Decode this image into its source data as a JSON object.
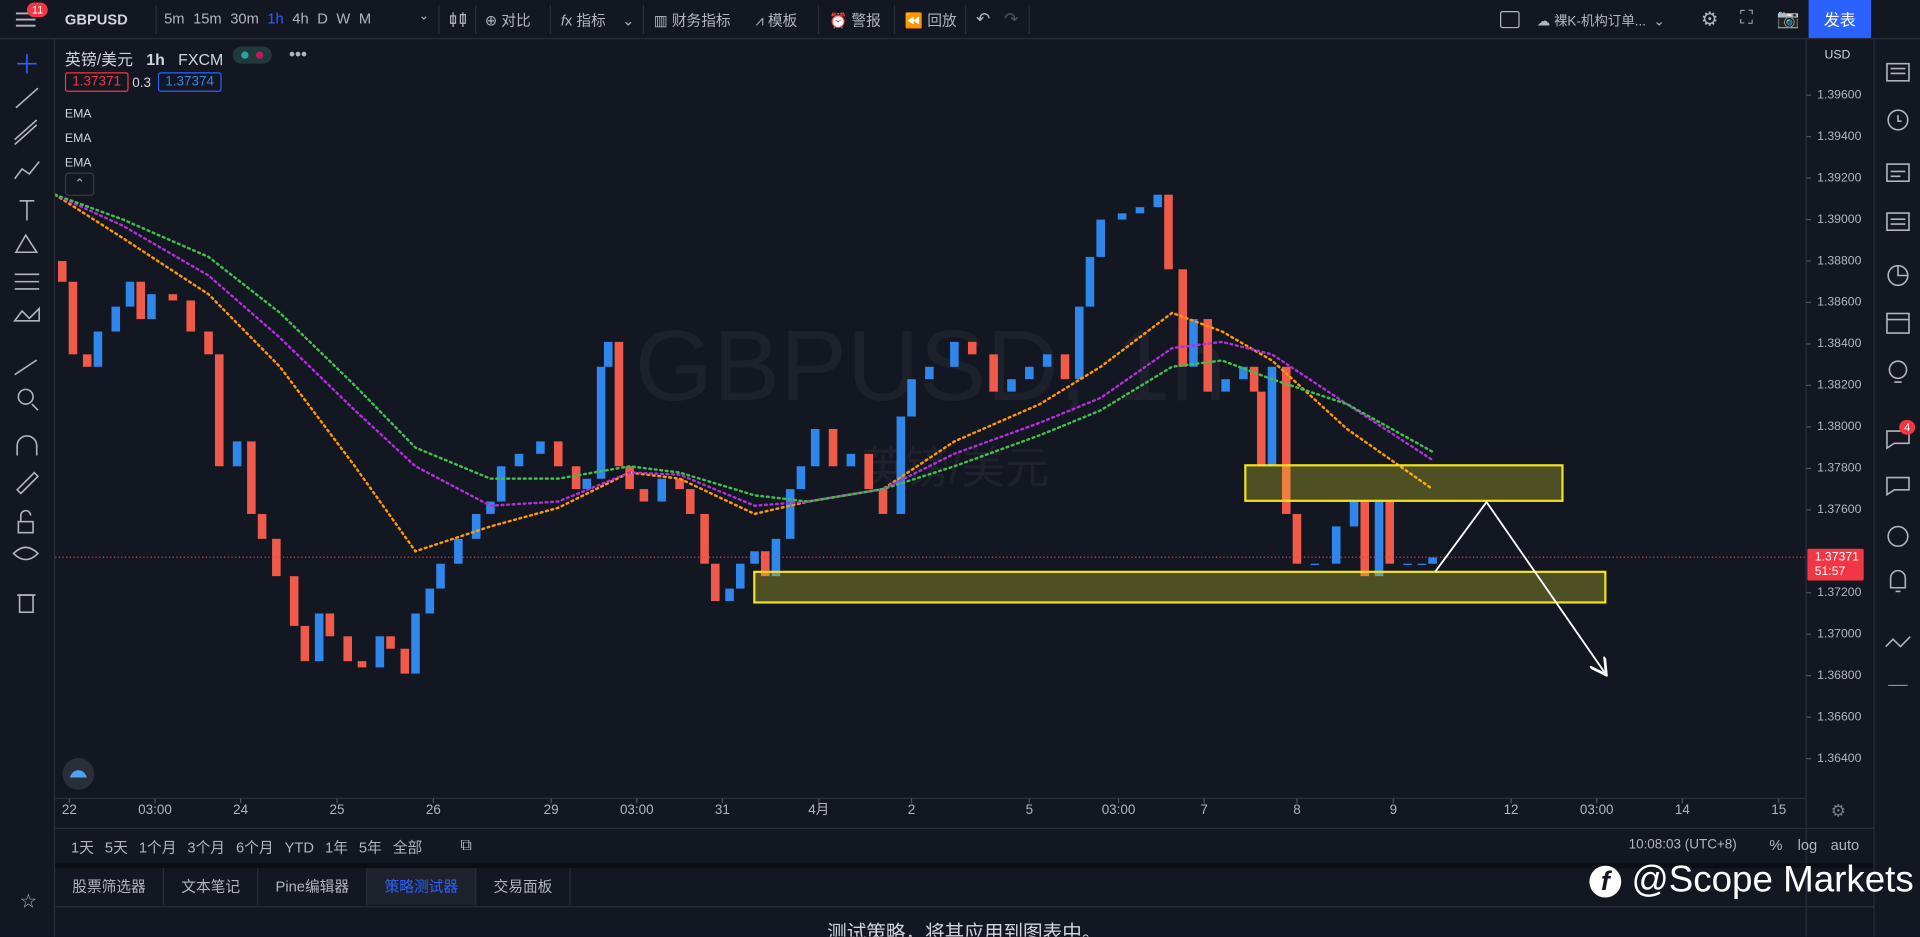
{
  "toolbar": {
    "badge": "11",
    "symbol": "GBPUSD",
    "timeframes": [
      "5m",
      "15m",
      "30m",
      "1h",
      "4h",
      "D",
      "W",
      "M"
    ],
    "compare": "对比",
    "indicators": "指标",
    "financials": "财务指标",
    "templates": "模板",
    "alert": "警报",
    "replay": "回放",
    "layout_name": "裸K-机构订单...",
    "publish": "发表"
  },
  "legend": {
    "name": "英镑/美元",
    "interval": "1h",
    "exchange": "FXCM",
    "bid": "1.37371",
    "spread": "0.3",
    "ask": "1.37374"
  },
  "watermark": {
    "symbol": "GBPUSD, 1h",
    "name": "英镑/美元"
  },
  "chart_data": {
    "type": "candlestick",
    "currency": "USD",
    "up_color": "#2f86eb",
    "down_color": "#ef5a4a",
    "grid": false,
    "xlim": [
      0,
      490
    ],
    "ylim": [
      1.3622,
      1.3987
    ],
    "xticks": [
      {
        "value": 4,
        "label": "22"
      },
      {
        "value": 28,
        "label": "03:00"
      },
      {
        "value": 52,
        "label": "24"
      },
      {
        "value": 79,
        "label": "25"
      },
      {
        "value": 106,
        "label": "26"
      },
      {
        "value": 139,
        "label": "29"
      },
      {
        "value": 163,
        "label": "03:00"
      },
      {
        "value": 187,
        "label": "31"
      },
      {
        "value": 214,
        "label": "4月"
      },
      {
        "value": 240,
        "label": "2"
      },
      {
        "value": 273,
        "label": "5"
      },
      {
        "value": 298,
        "label": "03:00"
      },
      {
        "value": 322,
        "label": "7"
      },
      {
        "value": 348,
        "label": "8"
      },
      {
        "value": 375,
        "label": "9"
      },
      {
        "value": 408,
        "label": "12"
      },
      {
        "value": 432,
        "label": "03:00"
      },
      {
        "value": 456,
        "label": "14"
      },
      {
        "value": 483,
        "label": "15"
      }
    ],
    "yticks": [
      {
        "value": 1.364,
        "label": "1.36400"
      },
      {
        "value": 1.366,
        "label": "1.36600"
      },
      {
        "value": 1.368,
        "label": "1.36800"
      },
      {
        "value": 1.37,
        "label": "1.37000"
      },
      {
        "value": 1.372,
        "label": "1.37200"
      },
      {
        "value": 1.376,
        "label": "1.37600"
      },
      {
        "value": 1.378,
        "label": "1.37800"
      },
      {
        "value": 1.38,
        "label": "1.38000"
      },
      {
        "value": 1.382,
        "label": "1.38200"
      },
      {
        "value": 1.384,
        "label": "1.38400"
      },
      {
        "value": 1.386,
        "label": "1.38600"
      },
      {
        "value": 1.388,
        "label": "1.38800"
      },
      {
        "value": 1.39,
        "label": "1.39000"
      },
      {
        "value": 1.392,
        "label": "1.39200"
      },
      {
        "value": 1.394,
        "label": "1.39400"
      },
      {
        "value": 1.396,
        "label": "1.39600"
      }
    ],
    "x": [
      2,
      5,
      9,
      12,
      17,
      21,
      24,
      27,
      33,
      38,
      43,
      46,
      51,
      55,
      58,
      62,
      67,
      70,
      74,
      77,
      82,
      86,
      91,
      94,
      98,
      101,
      105,
      108,
      113,
      118,
      122,
      125,
      130,
      136,
      141,
      146,
      149,
      153,
      155,
      158,
      161,
      165,
      170,
      175,
      178,
      182,
      185,
      189,
      192,
      196,
      199,
      202,
      206,
      209,
      213,
      218,
      223,
      228,
      232,
      237,
      240,
      245,
      252,
      257,
      263,
      268,
      273,
      278,
      283,
      287,
      290,
      293,
      299,
      304,
      309,
      312,
      316,
      319,
      323,
      328,
      333,
      336,
      338,
      341,
      345,
      348,
      353,
      359,
      364,
      367,
      371,
      374,
      379,
      383,
      386
    ],
    "open": [
      1.388,
      1.387,
      1.3835,
      1.3829,
      1.3846,
      1.3858,
      1.387,
      1.3852,
      1.3864,
      1.3861,
      1.3846,
      1.3835,
      1.3781,
      1.3793,
      1.3758,
      1.3746,
      1.3728,
      1.3704,
      1.3687,
      1.371,
      1.3699,
      1.3687,
      1.3684,
      1.3699,
      1.3693,
      1.3681,
      1.371,
      1.3722,
      1.3734,
      1.3746,
      1.3758,
      1.3764,
      1.3781,
      1.3787,
      1.3793,
      1.3781,
      1.377,
      1.3775,
      1.3829,
      1.3841,
      1.3781,
      1.377,
      1.3764,
      1.3775,
      1.377,
      1.3758,
      1.3734,
      1.3716,
      1.3722,
      1.3734,
      1.374,
      1.3728,
      1.3746,
      1.377,
      1.3781,
      1.3799,
      1.3781,
      1.3787,
      1.377,
      1.3758,
      1.3805,
      1.3823,
      1.3829,
      1.3841,
      1.3835,
      1.3817,
      1.3823,
      1.3829,
      1.3835,
      1.3823,
      1.3858,
      1.3882,
      1.39,
      1.3903,
      1.3906,
      1.3912,
      1.3876,
      1.3829,
      1.3852,
      1.3817,
      1.3823,
      1.3829,
      1.3817,
      1.3781,
      1.3829,
      1.3758,
      1.3734,
      1.3734,
      1.3752,
      1.3764,
      1.3728,
      1.3764,
      1.3734,
      1.3734,
      1.3734
    ],
    "close": [
      1.387,
      1.3835,
      1.3829,
      1.3846,
      1.3858,
      1.387,
      1.3852,
      1.3864,
      1.3861,
      1.3846,
      1.3835,
      1.3781,
      1.3793,
      1.3758,
      1.3746,
      1.3728,
      1.3704,
      1.3687,
      1.371,
      1.3699,
      1.3687,
      1.3684,
      1.3699,
      1.3693,
      1.3681,
      1.371,
      1.3722,
      1.3734,
      1.3746,
      1.3758,
      1.3764,
      1.3781,
      1.3787,
      1.3793,
      1.3781,
      1.377,
      1.3775,
      1.3829,
      1.3841,
      1.3781,
      1.377,
      1.3764,
      1.3775,
      1.377,
      1.3758,
      1.3734,
      1.3716,
      1.3722,
      1.3734,
      1.374,
      1.3728,
      1.3746,
      1.377,
      1.3781,
      1.3799,
      1.3781,
      1.3787,
      1.377,
      1.3758,
      1.3805,
      1.3823,
      1.3829,
      1.3841,
      1.3835,
      1.3817,
      1.3823,
      1.3829,
      1.3835,
      1.3823,
      1.3858,
      1.3882,
      1.39,
      1.3903,
      1.3906,
      1.3912,
      1.3876,
      1.3829,
      1.3852,
      1.3817,
      1.3823,
      1.3829,
      1.3817,
      1.3781,
      1.3829,
      1.3758,
      1.3734,
      1.3734,
      1.3752,
      1.3764,
      1.3728,
      1.3764,
      1.3734,
      1.3734,
      1.3734,
      1.3737
    ],
    "series": [
      {
        "name": "EMA",
        "color": "#ff9800",
        "x": [
          0,
          19,
          43,
          63,
          84,
          101,
          122,
          141,
          161,
          175,
          196,
          211,
          232,
          252,
          276,
          293,
          313,
          327,
          341,
          362,
          386
        ],
        "values": [
          1.3912,
          1.3891,
          1.3864,
          1.3829,
          1.3781,
          1.374,
          1.3752,
          1.3761,
          1.3778,
          1.3775,
          1.3758,
          1.3764,
          1.377,
          1.3793,
          1.3811,
          1.3829,
          1.3855,
          1.3846,
          1.3832,
          1.3799,
          1.377
        ]
      },
      {
        "name": "EMA",
        "color": "#b02fd6",
        "x": [
          0,
          19,
          43,
          63,
          84,
          101,
          122,
          141,
          161,
          175,
          196,
          211,
          232,
          252,
          276,
          293,
          313,
          327,
          341,
          362,
          386
        ],
        "values": [
          1.3912,
          1.3897,
          1.3873,
          1.3843,
          1.3808,
          1.3781,
          1.3762,
          1.3764,
          1.3778,
          1.3777,
          1.3762,
          1.3764,
          1.377,
          1.3787,
          1.3802,
          1.3814,
          1.3838,
          1.3841,
          1.3835,
          1.3811,
          1.3784
        ]
      },
      {
        "name": "EMA",
        "color": "#3fbf4a",
        "x": [
          0,
          19,
          43,
          63,
          84,
          101,
          122,
          141,
          161,
          175,
          196,
          211,
          232,
          252,
          276,
          293,
          313,
          327,
          341,
          362,
          386
        ],
        "values": [
          1.3912,
          1.39,
          1.3882,
          1.3855,
          1.382,
          1.379,
          1.3775,
          1.3775,
          1.3781,
          1.3778,
          1.3767,
          1.3764,
          1.377,
          1.3781,
          1.3796,
          1.3808,
          1.3829,
          1.3832,
          1.3823,
          1.3811,
          1.3788
        ]
      }
    ],
    "last_price": {
      "value": 1.37371,
      "label": "1.37371"
    },
    "countdown": "51:57"
  },
  "range_bar": {
    "ranges": [
      "1天",
      "5天",
      "1个月",
      "3个月",
      "6个月",
      "YTD",
      "1年",
      "5年",
      "全部"
    ],
    "clock": "10:08:03 (UTC+8)",
    "percent": "%",
    "log": "log",
    "auto": "auto"
  },
  "panel_tabs": [
    "股票筛选器",
    "文本笔记",
    "Pine编辑器",
    "策略测试器",
    "交易面板"
  ],
  "panel_message": "测试策略，将其应用到图表中。",
  "notification_badge": "4",
  "brand": "@Scope Markets"
}
